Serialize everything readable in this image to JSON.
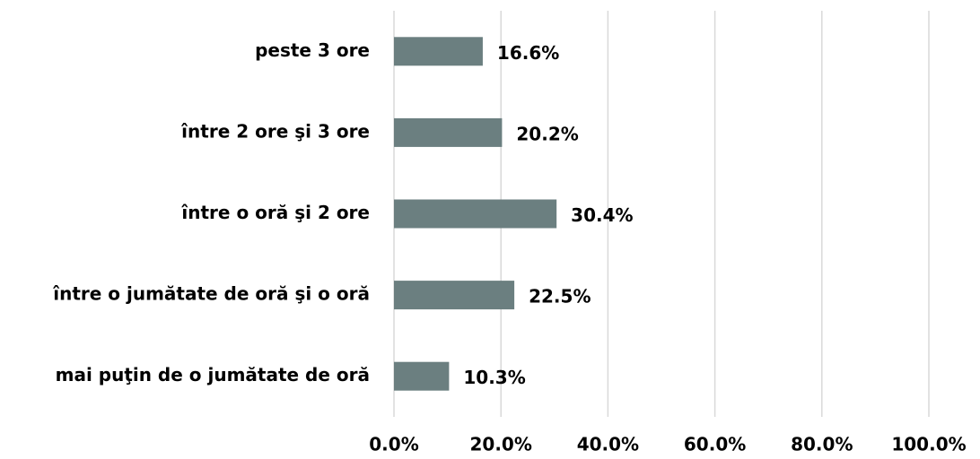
{
  "chart_data": {
    "type": "hbar",
    "categories": [
      "peste 3 ore",
      "între 2 ore şi 3 ore",
      "între o oră şi 2 ore",
      "între o jumătate de oră şi o oră",
      "mai puţin de o jumătate de oră"
    ],
    "values": [
      16.6,
      20.2,
      30.4,
      22.5,
      10.3
    ],
    "value_labels": [
      "16.6%",
      "20.2%",
      "30.4%",
      "22.5%",
      "10.3%"
    ],
    "color": "#6b7f80",
    "xlim": [
      0,
      100
    ],
    "xticks": [
      {
        "value": 0,
        "label": "0.0%"
      },
      {
        "value": 20,
        "label": "20.0%"
      },
      {
        "value": 40,
        "label": "40.0%"
      },
      {
        "value": 60,
        "label": "60.0%"
      },
      {
        "value": 80,
        "label": "80.0%"
      },
      {
        "value": 100,
        "label": "100.0%"
      }
    ],
    "grid": true
  }
}
